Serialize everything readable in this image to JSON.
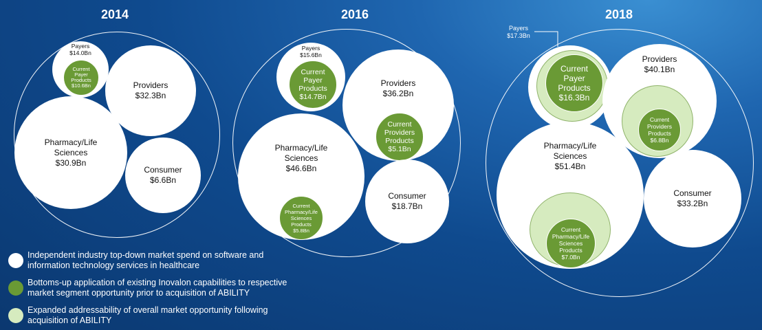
{
  "years": [
    "2014",
    "2016",
    "2018"
  ],
  "diagrams": [
    {
      "year": "2014",
      "payers": {
        "label": "Payers",
        "value": "$14.0Bn"
      },
      "current_payer": {
        "lines": [
          "Current",
          "Payer",
          "Products",
          "$10.6Bn"
        ]
      },
      "providers": {
        "label": "Providers",
        "value": "$32.3Bn"
      },
      "pharmacy": {
        "lines": [
          "Pharmacy/Life",
          "Sciences",
          "$30.9Bn"
        ]
      },
      "consumer": {
        "label": "Consumer",
        "value": "$6.6Bn"
      }
    },
    {
      "year": "2016",
      "payers": {
        "label": "Payers",
        "value": "$15.6Bn"
      },
      "current_payer": {
        "lines": [
          "Current",
          "Payer",
          "Products",
          "$14.7Bn"
        ]
      },
      "providers": {
        "label": "Providers",
        "value": "$36.2Bn"
      },
      "current_providers": {
        "lines": [
          "Current",
          "Providers",
          "Products",
          "$5.1Bn"
        ]
      },
      "pharmacy": {
        "lines": [
          "Pharmacy/Life",
          "Sciences",
          "$46.6Bn"
        ]
      },
      "current_pharmacy": {
        "lines": [
          "Current",
          "Pharmacy/Life",
          "Sciences",
          "Products",
          "$5.8Bn"
        ]
      },
      "consumer": {
        "label": "Consumer",
        "value": "$18.7Bn"
      }
    },
    {
      "year": "2018",
      "payers_callout": {
        "label": "Payers",
        "value": "$17.3Bn"
      },
      "current_payer": {
        "lines": [
          "Current",
          "Payer",
          "Products",
          "$16.3Bn"
        ]
      },
      "providers": {
        "label": "Providers",
        "value": "$40.1Bn"
      },
      "current_providers": {
        "lines": [
          "Current",
          "Providers",
          "Products",
          "$6.8Bn"
        ]
      },
      "pharmacy": {
        "lines": [
          "Pharmacy/Life",
          "Sciences",
          "$51.4Bn"
        ]
      },
      "current_pharmacy": {
        "lines": [
          "Current",
          "Pharmacy/Life",
          "Sciences",
          "Products",
          "$7.0Bn"
        ]
      },
      "consumer": {
        "label": "Consumer",
        "value": "$33.2Bn"
      }
    }
  ],
  "legend": [
    {
      "color": "#ffffff",
      "lines": [
        "Independent industry top-down market spend on software and",
        "information technology services in healthcare"
      ]
    },
    {
      "color": "#6a9a35",
      "lines": [
        "Bottoms-up application of existing Inovalon capabilities to respective",
        "market segment opportunity prior to acquisition of ABILITY"
      ]
    },
    {
      "color": "#d6ebbf",
      "lines": [
        "Expanded addressability of overall market opportunity following",
        "acquisition of ABILITY"
      ]
    }
  ],
  "colors": {
    "white": "#ffffff",
    "green": "#6a9a35",
    "light_green": "#d6ebbf",
    "background": "#0f4a8e"
  }
}
